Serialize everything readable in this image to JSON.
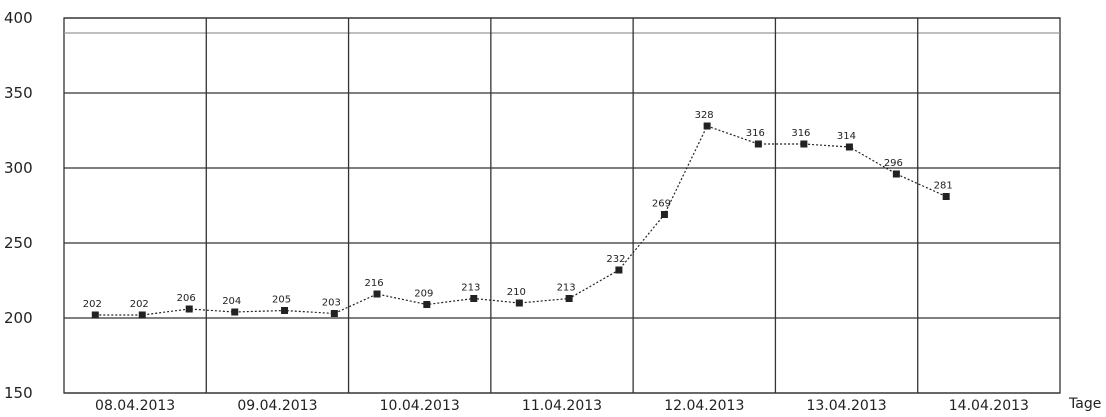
{
  "chart_data": {
    "type": "line",
    "xlabel": "Tage",
    "ylabel": "",
    "title": "",
    "ylim": [
      150,
      400
    ],
    "xlim": [
      0,
      7
    ],
    "yticks": [
      150,
      200,
      250,
      300,
      350,
      400
    ],
    "reference_line": 390,
    "grid": true,
    "x_tick_labels": [
      "08.04.2013",
      "09.04.2013",
      "10.04.2013",
      "11.04.2013",
      "12.04.2013",
      "13.04.2013",
      "14.04.2013"
    ],
    "series": [
      {
        "x": [
          0.22,
          0.55,
          0.88,
          1.2,
          1.55,
          1.9,
          2.2,
          2.55,
          2.88,
          3.2,
          3.55,
          3.9,
          4.22,
          4.52,
          4.88,
          5.2,
          5.52,
          5.85,
          6.2
        ],
        "values": [
          202,
          202,
          206,
          204,
          205,
          203,
          216,
          209,
          213,
          210,
          213,
          232,
          269,
          328,
          316,
          316,
          314,
          296,
          281
        ],
        "labels": [
          "202",
          "202",
          "206",
          "204",
          "205",
          "203",
          "216",
          "209",
          "213",
          "210",
          "213",
          "232",
          "269",
          "328",
          "316",
          "316",
          "314",
          "296",
          "281"
        ]
      }
    ],
    "colors": {
      "line": "#222222",
      "grid": "#333333",
      "reference": "#999999"
    }
  }
}
